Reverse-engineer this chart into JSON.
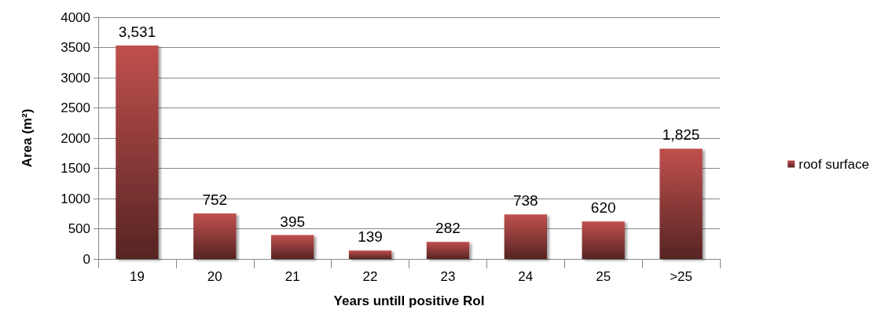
{
  "chart_data": {
    "type": "bar",
    "xlabel": "Years untill positive RoI",
    "ylabel": "Area (m²)",
    "categories": [
      "19",
      "20",
      "21",
      "22",
      "23",
      "24",
      "25",
      ">25"
    ],
    "series": [
      {
        "name": "roof surface",
        "color": "#c0504d",
        "values": [
          3531,
          752,
          395,
          139,
          282,
          738,
          620,
          1825
        ],
        "value_labels": [
          "3,531",
          "752",
          "395",
          "139",
          "282",
          "738",
          "620",
          "1,825"
        ]
      }
    ],
    "ylim": [
      0,
      4000
    ],
    "yticks": [
      0,
      500,
      1000,
      1500,
      2000,
      2500,
      3000,
      3500,
      4000
    ],
    "grid": "y",
    "legend": "right"
  }
}
